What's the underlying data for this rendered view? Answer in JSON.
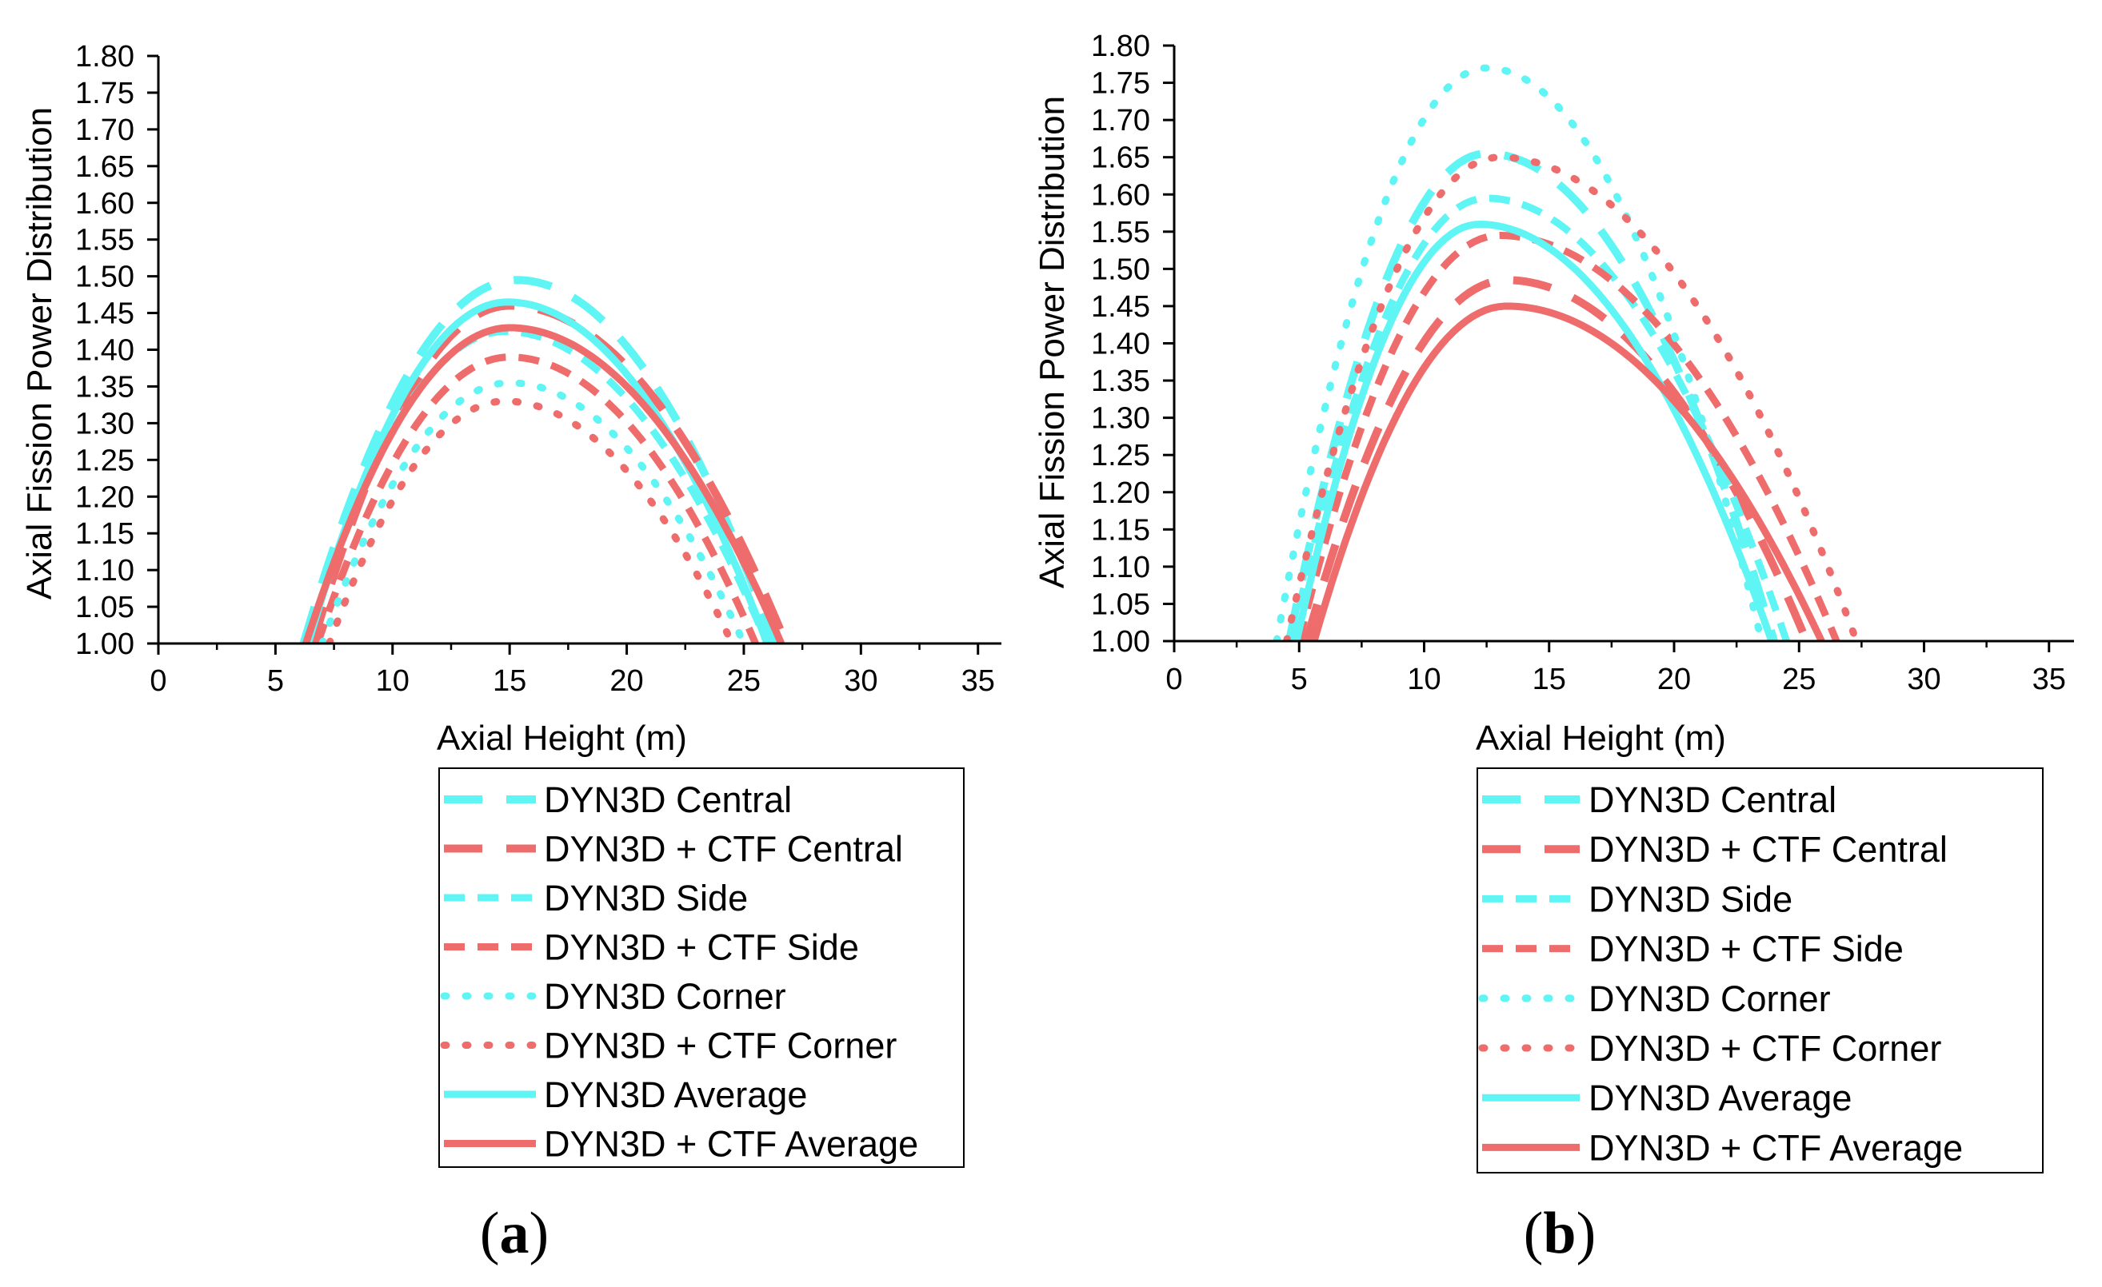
{
  "colors": {
    "cyan": "#5ff5f5",
    "red": "#ee6c6c",
    "axis": "#000000"
  },
  "panels": [
    {
      "label_open": "(",
      "label_letter": "a",
      "label_close": ")"
    },
    {
      "label_open": "(",
      "label_letter": "b",
      "label_close": ")"
    }
  ],
  "chart_data": [
    {
      "type": "line",
      "panel": "a",
      "xlabel": "Axial Height (m)",
      "ylabel": "Axial Fission Power Distribution",
      "xlim": [
        0,
        36
      ],
      "ylim": [
        1.0,
        1.8
      ],
      "xticks": [
        "0",
        "5",
        "10",
        "15",
        "20",
        "25",
        "30",
        "35"
      ],
      "yticks": [
        "1.00",
        "1.05",
        "1.10",
        "1.15",
        "1.20",
        "1.25",
        "1.30",
        "1.35",
        "1.40",
        "1.45",
        "1.50",
        "1.55",
        "1.60",
        "1.65",
        "1.70",
        "1.75",
        "1.80"
      ],
      "series": [
        {
          "name": "DYN3D Central",
          "style": "longdash",
          "color": "cyan",
          "x0": 6.2,
          "x1": 26.3,
          "peak_x": 15.3,
          "peak_y": 1.495
        },
        {
          "name": "DYN3D + CTF Central",
          "style": "longdash",
          "color": "red",
          "x0": 6.6,
          "x1": 26.8,
          "peak_x": 15.0,
          "peak_y": 1.46
        },
        {
          "name": "DYN3D Side",
          "style": "dash",
          "color": "cyan",
          "x0": 6.3,
          "x1": 26.0,
          "peak_x": 14.8,
          "peak_y": 1.425
        },
        {
          "name": "DYN3D + CTF Side",
          "style": "dash",
          "color": "red",
          "x0": 6.8,
          "x1": 25.5,
          "peak_x": 15.0,
          "peak_y": 1.39
        },
        {
          "name": "DYN3D Corner",
          "style": "dot",
          "color": "cyan",
          "x0": 7.0,
          "x1": 25.0,
          "peak_x": 15.0,
          "peak_y": 1.355
        },
        {
          "name": "DYN3D + CTF Corner",
          "style": "dot",
          "color": "red",
          "x0": 7.3,
          "x1": 24.5,
          "peak_x": 14.8,
          "peak_y": 1.33
        },
        {
          "name": "DYN3D Average",
          "style": "solid",
          "color": "cyan",
          "x0": 6.4,
          "x1": 26.0,
          "peak_x": 14.9,
          "peak_y": 1.465
        },
        {
          "name": "DYN3D + CTF Average",
          "style": "solid",
          "color": "red",
          "x0": 6.3,
          "x1": 26.6,
          "peak_x": 15.0,
          "peak_y": 1.43
        }
      ]
    },
    {
      "type": "line",
      "panel": "b",
      "xlabel": "Axial Height (m)",
      "ylabel": "Axial Fission Power Distribution",
      "xlim": [
        0,
        36
      ],
      "ylim": [
        1.0,
        1.8
      ],
      "xticks": [
        "0",
        "5",
        "10",
        "15",
        "20",
        "25",
        "30",
        "35"
      ],
      "yticks": [
        "1.00",
        "1.05",
        "1.10",
        "1.15",
        "1.20",
        "1.25",
        "1.30",
        "1.35",
        "1.40",
        "1.45",
        "1.50",
        "1.55",
        "1.60",
        "1.65",
        "1.70",
        "1.75",
        "1.80"
      ],
      "series": [
        {
          "name": "DYN3D Central",
          "style": "longdash",
          "color": "cyan",
          "x0": 4.6,
          "x1": 24.0,
          "peak_x": 12.5,
          "peak_y": 1.655
        },
        {
          "name": "DYN3D + CTF Central",
          "style": "longdash",
          "color": "red",
          "x0": 5.3,
          "x1": 25.3,
          "peak_x": 13.3,
          "peak_y": 1.485
        },
        {
          "name": "DYN3D Side",
          "style": "dash",
          "color": "cyan",
          "x0": 4.7,
          "x1": 24.5,
          "peak_x": 12.5,
          "peak_y": 1.595
        },
        {
          "name": "DYN3D + CTF Side",
          "style": "dash",
          "color": "red",
          "x0": 5.0,
          "x1": 26.5,
          "peak_x": 13.0,
          "peak_y": 1.545
        },
        {
          "name": "DYN3D Corner",
          "style": "dot",
          "color": "cyan",
          "x0": 4.1,
          "x1": 23.5,
          "peak_x": 12.5,
          "peak_y": 1.77
        },
        {
          "name": "DYN3D + CTF Corner",
          "style": "dot",
          "color": "red",
          "x0": 4.5,
          "x1": 27.3,
          "peak_x": 13.0,
          "peak_y": 1.65
        },
        {
          "name": "DYN3D Average",
          "style": "solid",
          "color": "cyan",
          "x0": 4.9,
          "x1": 23.9,
          "peak_x": 12.2,
          "peak_y": 1.56
        },
        {
          "name": "DYN3D + CTF Average",
          "style": "solid",
          "color": "red",
          "x0": 5.6,
          "x1": 25.9,
          "peak_x": 13.3,
          "peak_y": 1.45
        }
      ]
    }
  ]
}
